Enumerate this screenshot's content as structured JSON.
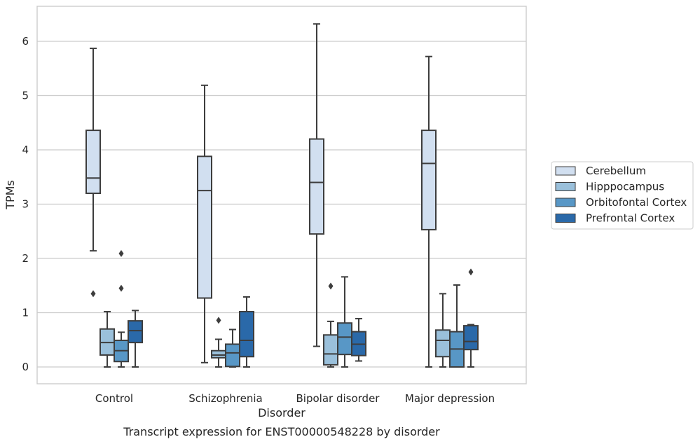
{
  "chart_data": {
    "type": "box",
    "title": "",
    "caption": "Transcript expression for ENST00000548228 by disorder",
    "xlabel": "Disorder",
    "ylabel": "TPMs",
    "ylim": [
      -0.3,
      6.6
    ],
    "yticks": [
      0,
      1,
      2,
      3,
      4,
      5,
      6
    ],
    "grid": "horizontal",
    "legend_position": "right",
    "categories": [
      "Control",
      "Schizophrenia",
      "Bipolar disorder",
      "Major depression"
    ],
    "series": [
      {
        "name": "Cerebellum",
        "color": "#d1dff0",
        "boxes": [
          {
            "low": 2.14,
            "q1": 3.2,
            "median": 3.48,
            "q3": 4.36,
            "high": 5.87,
            "outliers": [
              1.35
            ]
          },
          {
            "low": 0.08,
            "q1": 1.27,
            "median": 3.25,
            "q3": 3.88,
            "high": 5.19,
            "outliers": []
          },
          {
            "low": 0.38,
            "q1": 2.45,
            "median": 3.4,
            "q3": 4.2,
            "high": 6.32,
            "outliers": []
          },
          {
            "low": 0.0,
            "q1": 2.53,
            "median": 3.75,
            "q3": 4.36,
            "high": 5.72,
            "outliers": []
          }
        ]
      },
      {
        "name": "Hipppocampus",
        "color": "#9ac0db",
        "boxes": [
          {
            "low": 0.0,
            "q1": 0.22,
            "median": 0.45,
            "q3": 0.7,
            "high": 1.02,
            "outliers": []
          },
          {
            "low": 0.0,
            "q1": 0.17,
            "median": 0.22,
            "q3": 0.3,
            "high": 0.51,
            "outliers": [
              0.86
            ]
          },
          {
            "low": 0.0,
            "q1": 0.04,
            "median": 0.24,
            "q3": 0.59,
            "high": 0.84,
            "outliers": [
              1.49
            ]
          },
          {
            "low": 0.0,
            "q1": 0.19,
            "median": 0.49,
            "q3": 0.68,
            "high": 1.35,
            "outliers": []
          }
        ]
      },
      {
        "name": "Orbitofontal Cortex",
        "color": "#5897c6",
        "boxes": [
          {
            "low": 0.0,
            "q1": 0.1,
            "median": 0.3,
            "q3": 0.49,
            "high": 0.64,
            "outliers": [
              1.45,
              2.09
            ]
          },
          {
            "low": 0.0,
            "q1": 0.01,
            "median": 0.26,
            "q3": 0.42,
            "high": 0.69,
            "outliers": []
          },
          {
            "low": 0.0,
            "q1": 0.23,
            "median": 0.55,
            "q3": 0.81,
            "high": 1.66,
            "outliers": []
          },
          {
            "low": 0.0,
            "q1": 0.0,
            "median": 0.33,
            "q3": 0.65,
            "high": 1.51,
            "outliers": []
          }
        ]
      },
      {
        "name": "Prefrontal Cortex",
        "color": "#2a69a9",
        "boxes": [
          {
            "low": 0.0,
            "q1": 0.45,
            "median": 0.67,
            "q3": 0.85,
            "high": 1.04,
            "outliers": []
          },
          {
            "low": 0.0,
            "q1": 0.19,
            "median": 0.49,
            "q3": 1.02,
            "high": 1.29,
            "outliers": []
          },
          {
            "low": 0.11,
            "q1": 0.21,
            "median": 0.42,
            "q3": 0.65,
            "high": 0.89,
            "outliers": []
          },
          {
            "low": 0.0,
            "q1": 0.32,
            "median": 0.47,
            "q3": 0.76,
            "high": 0.78,
            "outliers": [
              1.75
            ]
          }
        ]
      }
    ]
  }
}
